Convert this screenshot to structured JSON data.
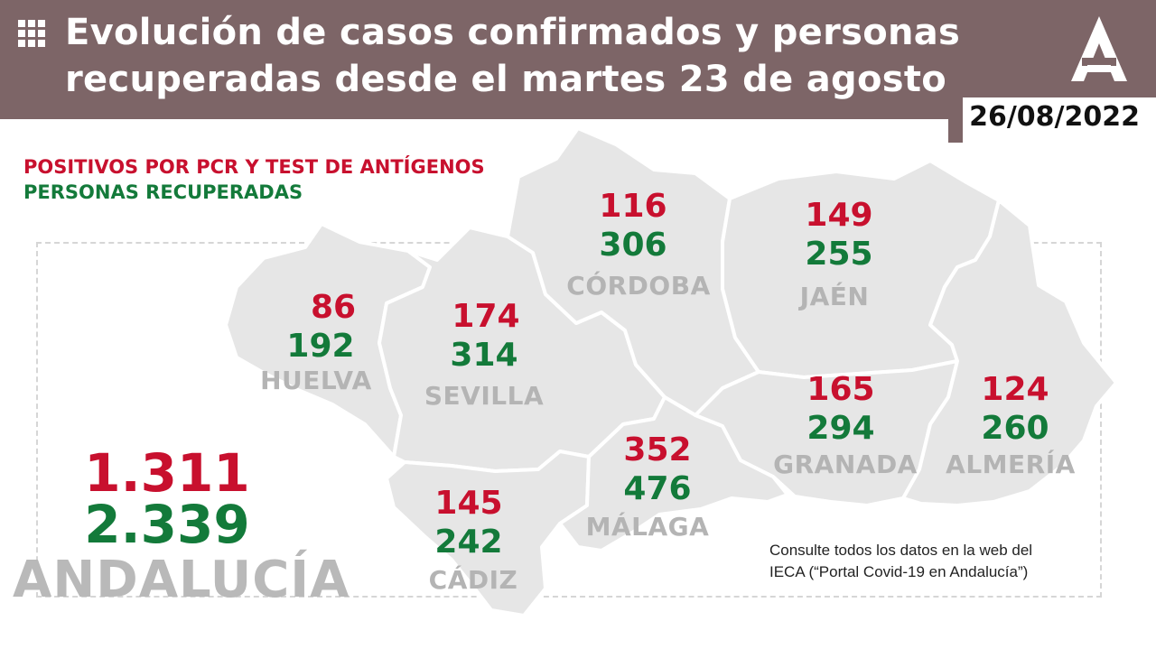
{
  "header": {
    "title": "Evolución de casos confirmados y personas\nrecuperadas desde el martes 23 de agosto",
    "date": "26/08/2022",
    "background_color": "#7d6567",
    "menu_icon": "grid-icon",
    "logo": "junta-andalucia-logo"
  },
  "legend": {
    "positives": "POSITIVOS POR PCR Y TEST DE ANTÍGENOS",
    "recovered": "PERSONAS RECUPERADAS",
    "positives_color": "#c8102e",
    "recovered_color": "#137a3a"
  },
  "provinces": [
    {
      "id": "huelva",
      "name": "HUELVA",
      "positives": "86",
      "recovered": "192"
    },
    {
      "id": "sevilla",
      "name": "SEVILLA",
      "positives": "174",
      "recovered": "314"
    },
    {
      "id": "cordoba",
      "name": "CÓRDOBA",
      "positives": "116",
      "recovered": "306"
    },
    {
      "id": "jaen",
      "name": "JAÉN",
      "positives": "149",
      "recovered": "255"
    },
    {
      "id": "cadiz",
      "name": "CÁDIZ",
      "positives": "145",
      "recovered": "242"
    },
    {
      "id": "malaga",
      "name": "MÁLAGA",
      "positives": "352",
      "recovered": "476"
    },
    {
      "id": "granada",
      "name": "GRANADA",
      "positives": "165",
      "recovered": "294"
    },
    {
      "id": "almeria",
      "name": "ALMERÍA",
      "positives": "124",
      "recovered": "260"
    }
  ],
  "total": {
    "name": "ANDALUCÍA",
    "positives": "1.311",
    "recovered": "2.339"
  },
  "footnote": "Consulte todos los datos en la web del\nIECA (“Portal Covid-19 en Andalucía”)"
}
